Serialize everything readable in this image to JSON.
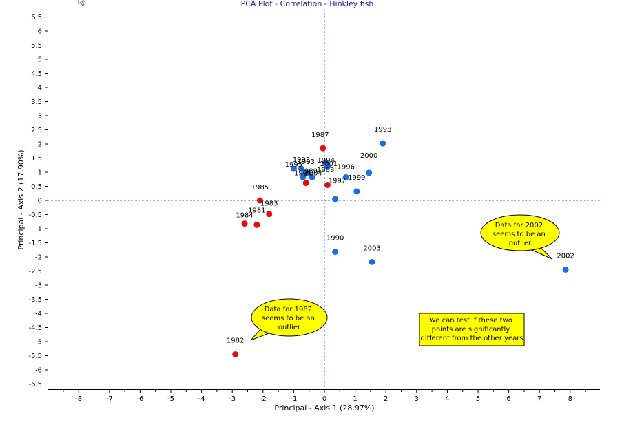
{
  "chart_data": {
    "type": "scatter",
    "title": "PCA Plot - Correlation - Hinkley fish",
    "xlabel": "Principal - Axis 1 (28.97%)",
    "ylabel": "Principal - Axis 2 (17.90%)",
    "xlim": [
      -9,
      9
    ],
    "ylim": [
      -6.7,
      6.6
    ],
    "xticks": [
      "-8",
      "-7",
      "-6",
      "-5",
      "-4",
      "-3",
      "-2",
      "-1",
      "0",
      "1",
      "2",
      "3",
      "4",
      "5",
      "6",
      "7",
      "8"
    ],
    "yticks": [
      "6.5",
      "6",
      "5.5",
      "5",
      "4.5",
      "4",
      "3.5",
      "3",
      "2.5",
      "2",
      "1.5",
      "1",
      "0.5",
      "0",
      "-0.5",
      "-1",
      "-1.5",
      "-2",
      "-2.5",
      "-3",
      "-3.5",
      "-4",
      "-4.5",
      "-5",
      "-5.5",
      "-6",
      "-6.5"
    ],
    "grid": false,
    "reference_lines": {
      "x": 0,
      "y": 0,
      "color": "#3b6fd4"
    },
    "colors": {
      "red": "#e01010",
      "blue": "#1a6ee8"
    },
    "points": [
      {
        "label": "1982",
        "x": -2.9,
        "y": -5.45,
        "color": "red"
      },
      {
        "label": "1984",
        "x": -2.6,
        "y": -0.82,
        "color": "red"
      },
      {
        "label": "1981",
        "x": -2.2,
        "y": -0.86,
        "color": "red"
      },
      {
        "label": "1983",
        "x": -1.8,
        "y": -0.48,
        "color": "red"
      },
      {
        "label": "1985",
        "x": -2.1,
        "y": 0.0,
        "color": "red"
      },
      {
        "label": "1989",
        "x": -0.6,
        "y": 0.62,
        "color": "red"
      },
      {
        "label": "1987",
        "x": -0.05,
        "y": 1.85,
        "color": "red"
      },
      {
        "label": "1997",
        "x": 0.1,
        "y": 0.55,
        "color": "red"
      },
      {
        "label": "1998",
        "x": 1.9,
        "y": 2.02,
        "color": "blue"
      },
      {
        "label": "1994",
        "x": 0.05,
        "y": 1.32,
        "color": "blue"
      },
      {
        "label": "2001",
        "x": 0.1,
        "y": 1.2,
        "color": "blue"
      },
      {
        "label": "1993",
        "x": -0.6,
        "y": 0.98,
        "color": "blue"
      },
      {
        "label": "1995",
        "x": -1.0,
        "y": 1.12,
        "color": "blue"
      },
      {
        "label": "1992",
        "x": -0.75,
        "y": 1.12,
        "color": "blue"
      },
      {
        "label": "1991",
        "x": -0.7,
        "y": 0.82,
        "color": "blue"
      },
      {
        "label": "2004",
        "x": -0.4,
        "y": 0.82,
        "color": "blue"
      },
      {
        "label": "1988",
        "x": 0.35,
        "y": 0.05,
        "color": "blue"
      },
      {
        "label": "1996",
        "x": 0.7,
        "y": 0.82,
        "color": "blue"
      },
      {
        "label": "1999",
        "x": 1.05,
        "y": 0.32,
        "color": "blue"
      },
      {
        "label": "2000",
        "x": 1.45,
        "y": 0.98,
        "color": "blue"
      },
      {
        "label": "1990",
        "x": 0.35,
        "y": -1.82,
        "color": "blue"
      },
      {
        "label": "2003",
        "x": 1.55,
        "y": -2.18,
        "color": "blue"
      },
      {
        "label": "2002",
        "x": 7.85,
        "y": -2.45,
        "color": "blue"
      }
    ],
    "annotations": [
      {
        "type": "speech-bubble",
        "lines": [
          "Data for 2002",
          "seems to be an",
          "outlier"
        ]
      },
      {
        "type": "speech-bubble",
        "lines": [
          "Data for 1982",
          "seems to be an",
          "outlier"
        ]
      },
      {
        "type": "note-box",
        "lines": [
          "We can test if these two",
          "points are significantly",
          "different from the other years"
        ]
      }
    ]
  }
}
